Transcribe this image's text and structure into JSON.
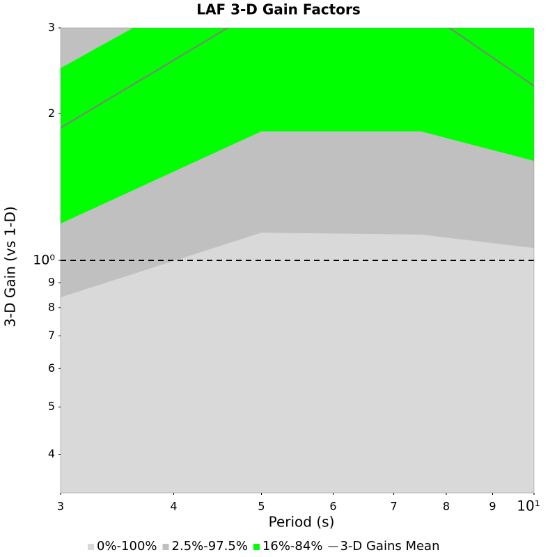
{
  "chart_data": {
    "type": "band",
    "title": "LAF 3-D Gain Factors",
    "x_label": "Period (s)",
    "y_label": "3-D Gain (vs 1-D)",
    "x": [
      3,
      5,
      7.5,
      10
    ],
    "xlog": true,
    "ylog": true,
    "xlim": [
      3,
      10
    ],
    "ylim": [
      0.3333,
      3
    ],
    "xticks": [
      3,
      4,
      5,
      6,
      7,
      8,
      9,
      {
        "value": 10,
        "label": "10¹"
      }
    ],
    "yticks": [
      {
        "value": 0.4,
        "label": "4"
      },
      {
        "value": 0.5,
        "label": "5"
      },
      {
        "value": 0.6,
        "label": "6"
      },
      {
        "value": 0.7,
        "label": "7"
      },
      {
        "value": 0.8,
        "label": "8"
      },
      {
        "value": 0.9,
        "label": "9"
      },
      {
        "value": 1,
        "label": "10⁰"
      },
      2,
      3
    ],
    "hline": 1,
    "bands": [
      {
        "name": "0%-100%",
        "color": "#d9d9d9",
        "lower": [
          0.3,
          0.3,
          0.3,
          0.3
        ],
        "upper": [
          4,
          5,
          5,
          4
        ]
      },
      {
        "name": "2.5%-97.5%",
        "color": "#c0c0c0",
        "lower": [
          0.84,
          1.14,
          1.13,
          1.06
        ],
        "upper": [
          3.5,
          4.5,
          4.5,
          3.5
        ]
      },
      {
        "name": "16%-84%",
        "color": "#00ff00",
        "lower": [
          1.19,
          1.84,
          1.84,
          1.6
        ],
        "upper": [
          2.48,
          4.2,
          4.2,
          3.0
        ]
      }
    ],
    "series": [
      {
        "name": "3-D Gains Mean",
        "color": "#808080",
        "values": [
          1.87,
          3.3,
          3.29,
          2.28
        ]
      }
    ]
  }
}
